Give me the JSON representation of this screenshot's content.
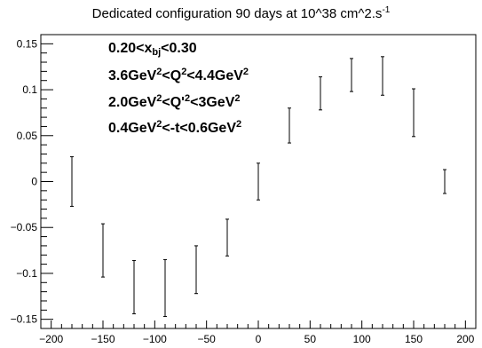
{
  "chart_data": {
    "type": "scatter",
    "title": "Dedicated configuration 90 days at 10^38 cm^2.s",
    "title_sup": "-1",
    "xlim": [
      -210,
      210
    ],
    "ylim": [
      -0.16,
      0.16
    ],
    "xticks": [
      -200,
      -150,
      -100,
      -50,
      0,
      50,
      100,
      150,
      200
    ],
    "yticks": [
      -0.15,
      -0.1,
      -0.05,
      0,
      0.05,
      0.1,
      0.15
    ],
    "ytick_labels": [
      "−0.15",
      "−0.1",
      "−0.05",
      "0",
      "0.05",
      "0.1",
      "0.15"
    ],
    "xtick_labels": [
      "−200",
      "−150",
      "−100",
      "−50",
      "0",
      "50",
      "100",
      "150",
      "200"
    ],
    "grid": false,
    "series": [
      {
        "marker": "error-bar",
        "x": [
          -180,
          -150,
          -120,
          -90,
          -60,
          -30,
          0,
          30,
          60,
          90,
          120,
          150,
          180
        ],
        "y": [
          0.0,
          -0.075,
          -0.115,
          -0.116,
          -0.096,
          -0.061,
          0.0,
          0.061,
          0.096,
          0.116,
          0.115,
          0.075,
          0.0
        ],
        "err": [
          0.027,
          0.029,
          0.029,
          0.031,
          0.026,
          0.02,
          0.02,
          0.019,
          0.018,
          0.018,
          0.021,
          0.026,
          0.013
        ]
      }
    ],
    "annotations": {
      "xbj": {
        "pre": "0.20<x",
        "sub": "bj",
        "post": "<0.30"
      },
      "q2": {
        "a": "3.6GeV",
        "b": "<Q",
        "c": "<4.4GeV"
      },
      "qp2": {
        "a": "2.0GeV",
        "b": "<Q'",
        "c": "<3GeV"
      },
      "t": {
        "a": "0.4GeV",
        "b": "<-t<0.6GeV"
      },
      "sup2": "2"
    }
  }
}
